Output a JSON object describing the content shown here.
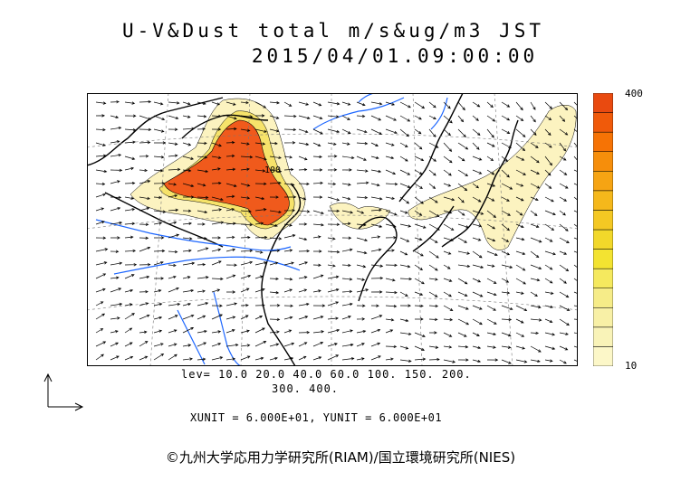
{
  "title": {
    "line1": "U-V&Dust total m/s&ug/m3 JST",
    "line2": "2015/04/01.09:00:00"
  },
  "colorbar": {
    "max_label": "400",
    "min_label": "10",
    "colors": [
      "#fcf7c8",
      "#f9f3b8",
      "#f8f0a6",
      "#f6ec88",
      "#f5e95e",
      "#f3e331",
      "#f2d82a",
      "#f4c823",
      "#f5b81b",
      "#f6a413",
      "#f68e0b",
      "#f67305",
      "#f05a0a",
      "#e94a10"
    ]
  },
  "levels": {
    "line1": "lev= 10.0 20.0 40.0 60.0 100. 150. 200.",
    "line2": "300. 400."
  },
  "units": "XUNIT = 6.000E+01, YUNIT = 6.000E+01",
  "contour_label": "100",
  "copyright": "©九州大学応用力学研究所(RIAM)/国立環境研究所(NIES)",
  "colors": {
    "coast": "#000000",
    "river": "#1c66ff",
    "dust_high": "#f05a1c",
    "dust_low": "#fcf3c0"
  }
}
